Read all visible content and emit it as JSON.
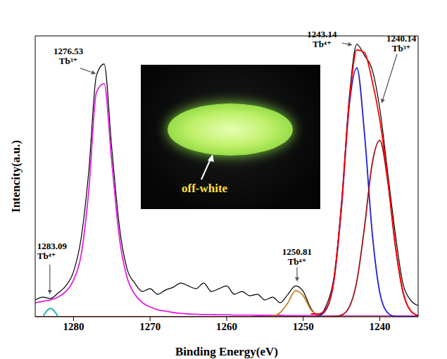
{
  "chart_data": {
    "type": "line",
    "x_label": "Binding Energy(eV)",
    "y_label": "Intencity(a.u.)",
    "x": [
      1285,
      1284,
      1283,
      1282,
      1281,
      1280,
      1279,
      1278,
      1277,
      1276,
      1275,
      1274,
      1273,
      1272,
      1271,
      1270,
      1269,
      1268,
      1267,
      1266,
      1265,
      1264,
      1263,
      1262,
      1261,
      1260,
      1259,
      1258,
      1257,
      1256,
      1255,
      1254,
      1253,
      1252,
      1251,
      1250,
      1249,
      1248,
      1247,
      1246,
      1245,
      1244,
      1243,
      1242,
      1241,
      1240,
      1239,
      1238,
      1237,
      1236,
      1235
    ],
    "series": [
      {
        "color": "#000000",
        "values": [
          6,
          7,
          6.5,
          8.5,
          11,
          16,
          28,
          52,
          86,
          90,
          60,
          32,
          17,
          12,
          9,
          10,
          8,
          9.5,
          10.5,
          12,
          11,
          10,
          12,
          9,
          10,
          11,
          8,
          9,
          7.5,
          8,
          6,
          7,
          5,
          8,
          11,
          9,
          3,
          0.5,
          4,
          14,
          41,
          78,
          97,
          93,
          88,
          74,
          52,
          30,
          12,
          6,
          4
        ]
      },
      {
        "color": "#e020e0",
        "values": [
          5,
          5.5,
          6,
          7,
          9,
          13,
          22,
          45,
          80,
          83,
          55,
          28,
          14,
          8,
          5,
          3.5,
          2.5,
          2,
          1.5,
          1.2,
          1,
          0.9,
          0.8,
          0.8,
          0.7,
          0.7,
          0.6,
          0.6,
          0.6,
          0.5,
          0.5,
          0.5,
          0.5,
          0.4,
          0.4,
          0.4,
          0.4,
          0.4,
          0.3,
          0.3,
          0.3,
          0.3,
          0.3,
          0.3,
          0.3,
          0.3,
          0.3,
          0.3,
          0.3,
          0.3,
          0.3
        ]
      },
      {
        "color": "#c8801e",
        "values": [
          0,
          0,
          0,
          0,
          0,
          0,
          0,
          0,
          0,
          0,
          0,
          0,
          0,
          0,
          0,
          0,
          0,
          0,
          0,
          0,
          0,
          0,
          0,
          0,
          0,
          0,
          0,
          0,
          0,
          0,
          0,
          0.2,
          1.5,
          5,
          9.3,
          7.5,
          2.5,
          0.5,
          0,
          0,
          0,
          0,
          0,
          0,
          0,
          0,
          0,
          0,
          0,
          0,
          0
        ]
      },
      {
        "color": "#2020d0",
        "values": [
          0,
          0,
          0,
          0,
          0,
          0,
          0,
          0,
          0,
          0,
          0,
          0,
          0,
          0,
          0,
          0,
          0,
          0,
          0,
          0,
          0,
          0,
          0,
          0,
          0,
          0,
          0,
          0,
          0,
          0,
          0,
          0,
          0,
          0,
          0,
          0,
          0,
          0.3,
          2.6,
          12.7,
          39,
          75,
          88.6,
          65,
          30,
          8.5,
          1.5,
          0.1,
          0,
          0,
          0
        ]
      },
      {
        "color": "#a01010",
        "values": [
          0,
          0,
          0,
          0,
          0,
          0,
          0,
          0,
          0,
          0,
          0,
          0,
          0,
          0,
          0,
          0,
          0,
          0,
          0,
          0,
          0,
          0,
          0,
          0,
          0,
          0,
          0,
          0,
          0,
          0,
          0,
          0,
          0,
          0,
          0,
          0,
          0,
          0,
          0,
          0.1,
          0.6,
          3.4,
          12.7,
          32,
          54.5,
          62.8,
          48.8,
          25.8,
          9.1,
          2.2,
          0.4
        ]
      },
      {
        "color": "#ff0000",
        "values": [
          null,
          null,
          null,
          null,
          null,
          null,
          null,
          null,
          null,
          null,
          null,
          null,
          null,
          null,
          null,
          null,
          null,
          null,
          null,
          null,
          null,
          null,
          null,
          null,
          null,
          null,
          null,
          null,
          null,
          null,
          null,
          null,
          null,
          null,
          null,
          null,
          1,
          1,
          3,
          13,
          40,
          76,
          95,
          94,
          84,
          70,
          50,
          26,
          9,
          2.2,
          0.4
        ]
      },
      {
        "color": "#20b0b0",
        "values": [
          null,
          0,
          3,
          0,
          null,
          null,
          null,
          null,
          null,
          null,
          null,
          null,
          null,
          null,
          null,
          null,
          null,
          null,
          null,
          null,
          null,
          null,
          null,
          null,
          null,
          null,
          null,
          null,
          null,
          null,
          null,
          null,
          null,
          null,
          null,
          null,
          null,
          null,
          null,
          null,
          null,
          null,
          null,
          null,
          null,
          null,
          null,
          null,
          null,
          null,
          null
        ]
      }
    ],
    "xlim": [
      1285,
      1235
    ],
    "xticks": [
      1280,
      1270,
      1260,
      1250,
      1240
    ],
    "ylim": [
      0,
      100
    ],
    "tick_labels": "x",
    "grid": false,
    "annotations": [
      {
        "value": 1283.09,
        "label": "Tb⁴⁺"
      },
      {
        "value": 1276.53,
        "label": "Tb³⁺"
      },
      {
        "value": 1250.81,
        "label": "Tb⁴⁺"
      },
      {
        "value": 1243.14,
        "label": "Tb⁴⁺"
      },
      {
        "value": 1240.14,
        "label": "Tb³⁺"
      }
    ],
    "inset": {
      "label": "off-white"
    }
  }
}
